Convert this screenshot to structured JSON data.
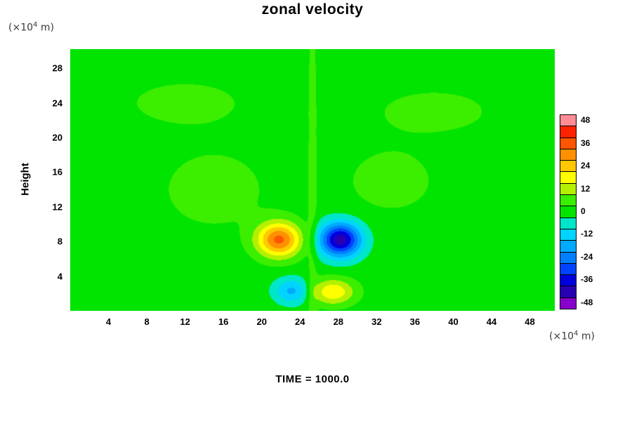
{
  "chart_data": {
    "type": "heatmap",
    "title": "zonal velocity",
    "ylabel": "Height",
    "axis_unit": {
      "prefix": "(×10",
      "sup": "4",
      "suffix": " m)"
    },
    "time_label": "TIME = 1000.0",
    "x_range": [
      0,
      50.6
    ],
    "y_range": [
      0,
      30.2
    ],
    "x_ticks": [
      4,
      8,
      12,
      16,
      20,
      24,
      28,
      32,
      36,
      40,
      44,
      48
    ],
    "y_ticks": [
      4,
      8,
      12,
      16,
      20,
      24,
      28
    ],
    "grid": false,
    "legend_position": "right",
    "colorbar_labels": [
      48,
      36,
      24,
      12,
      0,
      -12,
      -24,
      -36,
      -48
    ],
    "colormap": {
      "level_min": -51,
      "step": 6,
      "colors": [
        "#8800cc",
        "#2800b4",
        "#0000dd",
        "#0044ff",
        "#0080ff",
        "#00aaff",
        "#00d4ff",
        "#00e6c8",
        "#00e400",
        "#3cee00",
        "#b4f000",
        "#ffff00",
        "#ffc800",
        "#ff9100",
        "#ff5500",
        "#ff2200",
        "#ff8c96"
      ]
    },
    "field": {
      "description": "zonal velocity anomaly field, sum of gaussian cells over uniform background (units m/s, x/y in 10^4 m)",
      "background": 0.3,
      "blobs": [
        {
          "x": 21.8,
          "y": 8.2,
          "amp": 34,
          "sx": 2.3,
          "sy": 2.0
        },
        {
          "x": 28.2,
          "y": 8.2,
          "amp": -43,
          "sx": 2.2,
          "sy": 2.0
        },
        {
          "x": 23.2,
          "y": 2.3,
          "amp": -17,
          "sx": 1.9,
          "sy": 1.5
        },
        {
          "x": 27.4,
          "y": 2.2,
          "amp": 20,
          "sx": 2.3,
          "sy": 1.5
        },
        {
          "x": 15.0,
          "y": 14.0,
          "amp": 5,
          "sx": 6.0,
          "sy": 5.0
        },
        {
          "x": 33.5,
          "y": 15.0,
          "amp": 5,
          "sx": 5.0,
          "sy": 4.0
        },
        {
          "x": 12.0,
          "y": 24.0,
          "amp": 4.5,
          "sx": 7.0,
          "sy": 3.0
        },
        {
          "x": 38.0,
          "y": 23.0,
          "amp": 4.5,
          "sx": 7.0,
          "sy": 3.0
        },
        {
          "x": 25.3,
          "y": 15.0,
          "amp": 4.3,
          "sx": 0.55,
          "sy": 40.0
        }
      ]
    }
  }
}
